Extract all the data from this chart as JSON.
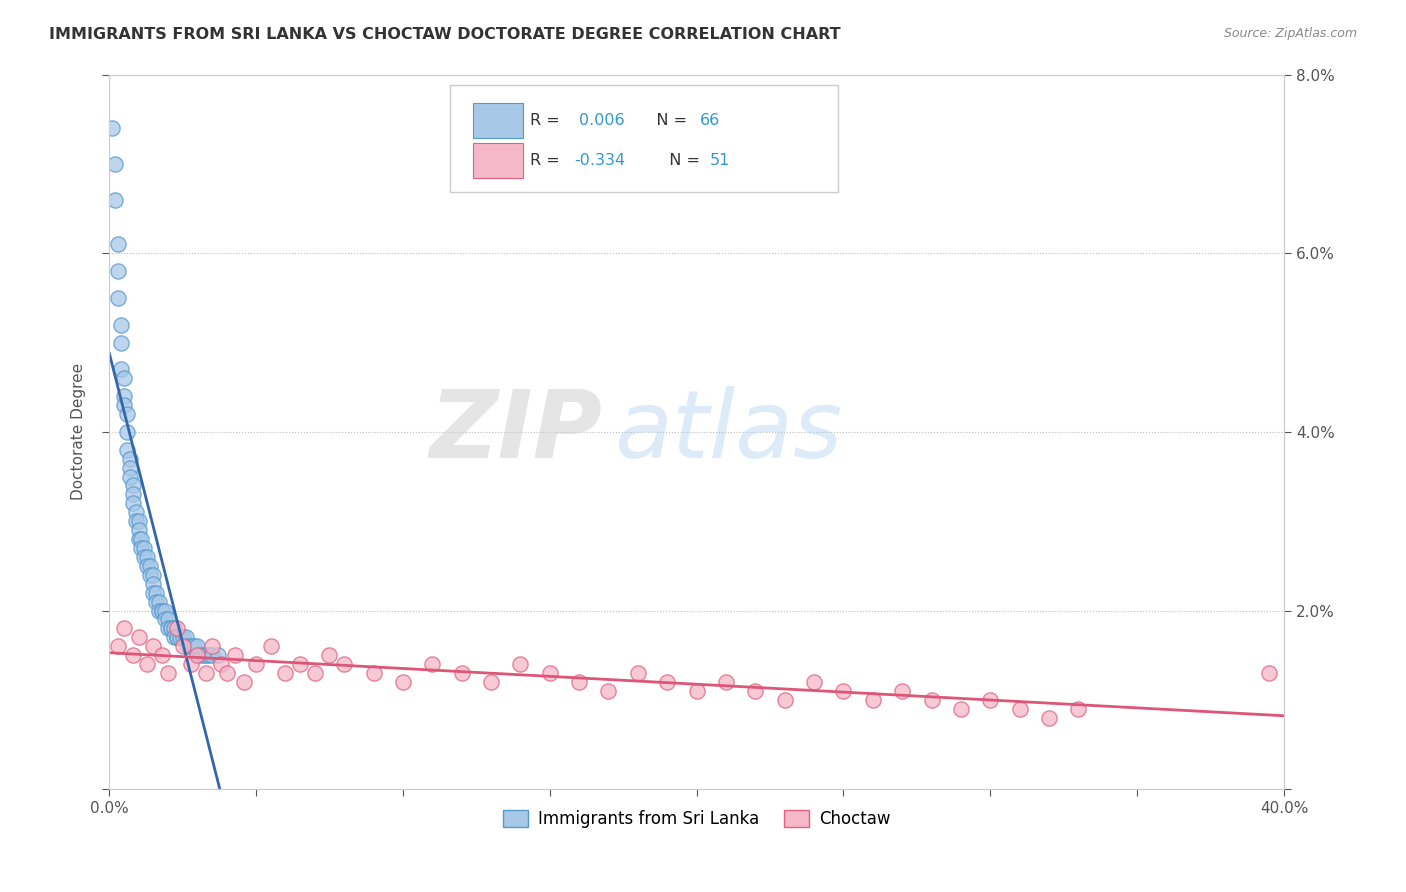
{
  "title": "IMMIGRANTS FROM SRI LANKA VS CHOCTAW DOCTORATE DEGREE CORRELATION CHART",
  "source_text": "Source: ZipAtlas.com",
  "ylabel": "Doctorate Degree",
  "xlim": [
    0.0,
    0.4
  ],
  "ylim": [
    0.0,
    0.08
  ],
  "blue_color": "#a8c8e8",
  "blue_edge_color": "#5599cc",
  "pink_color": "#f5b8c8",
  "pink_edge_color": "#e06080",
  "blue_line_solid_color": "#3366aa",
  "blue_line_dash_color": "#99bbdd",
  "pink_line_color": "#dd5577",
  "watermark_zip": "ZIP",
  "watermark_atlas": "atlas",
  "background_color": "#ffffff",
  "grid_color": "#cccccc",
  "legend_line1": "R =  0.006   N = 66",
  "legend_line2": "R = -0.334   N = 51",
  "sri_lanka_x": [
    0.001,
    0.002,
    0.002,
    0.003,
    0.003,
    0.003,
    0.004,
    0.004,
    0.004,
    0.005,
    0.005,
    0.005,
    0.006,
    0.006,
    0.006,
    0.007,
    0.007,
    0.007,
    0.008,
    0.008,
    0.008,
    0.009,
    0.009,
    0.01,
    0.01,
    0.01,
    0.011,
    0.011,
    0.012,
    0.012,
    0.013,
    0.013,
    0.014,
    0.014,
    0.015,
    0.015,
    0.015,
    0.016,
    0.016,
    0.017,
    0.017,
    0.018,
    0.018,
    0.019,
    0.019,
    0.02,
    0.02,
    0.021,
    0.021,
    0.022,
    0.022,
    0.023,
    0.023,
    0.024,
    0.025,
    0.026,
    0.027,
    0.028,
    0.029,
    0.03,
    0.031,
    0.032,
    0.033,
    0.034,
    0.035,
    0.037
  ],
  "sri_lanka_y": [
    0.074,
    0.07,
    0.066,
    0.061,
    0.058,
    0.055,
    0.052,
    0.05,
    0.047,
    0.046,
    0.044,
    0.043,
    0.042,
    0.04,
    0.038,
    0.037,
    0.036,
    0.035,
    0.034,
    0.033,
    0.032,
    0.031,
    0.03,
    0.03,
    0.029,
    0.028,
    0.028,
    0.027,
    0.027,
    0.026,
    0.026,
    0.025,
    0.025,
    0.024,
    0.024,
    0.023,
    0.022,
    0.022,
    0.021,
    0.021,
    0.02,
    0.02,
    0.02,
    0.02,
    0.019,
    0.019,
    0.018,
    0.018,
    0.018,
    0.018,
    0.017,
    0.017,
    0.017,
    0.017,
    0.017,
    0.017,
    0.016,
    0.016,
    0.016,
    0.016,
    0.015,
    0.015,
    0.015,
    0.015,
    0.015,
    0.015
  ],
  "choctaw_x": [
    0.003,
    0.005,
    0.008,
    0.01,
    0.013,
    0.015,
    0.018,
    0.02,
    0.023,
    0.025,
    0.028,
    0.03,
    0.033,
    0.035,
    0.038,
    0.04,
    0.043,
    0.046,
    0.05,
    0.055,
    0.06,
    0.065,
    0.07,
    0.075,
    0.08,
    0.09,
    0.1,
    0.11,
    0.12,
    0.13,
    0.14,
    0.15,
    0.16,
    0.17,
    0.18,
    0.19,
    0.2,
    0.21,
    0.22,
    0.23,
    0.24,
    0.25,
    0.26,
    0.27,
    0.28,
    0.29,
    0.3,
    0.31,
    0.32,
    0.33,
    0.395
  ],
  "choctaw_y": [
    0.016,
    0.018,
    0.015,
    0.017,
    0.014,
    0.016,
    0.015,
    0.013,
    0.018,
    0.016,
    0.014,
    0.015,
    0.013,
    0.016,
    0.014,
    0.013,
    0.015,
    0.012,
    0.014,
    0.016,
    0.013,
    0.014,
    0.013,
    0.015,
    0.014,
    0.013,
    0.012,
    0.014,
    0.013,
    0.012,
    0.014,
    0.013,
    0.012,
    0.011,
    0.013,
    0.012,
    0.011,
    0.012,
    0.011,
    0.01,
    0.012,
    0.011,
    0.01,
    0.011,
    0.01,
    0.009,
    0.01,
    0.009,
    0.008,
    0.009,
    0.013
  ]
}
